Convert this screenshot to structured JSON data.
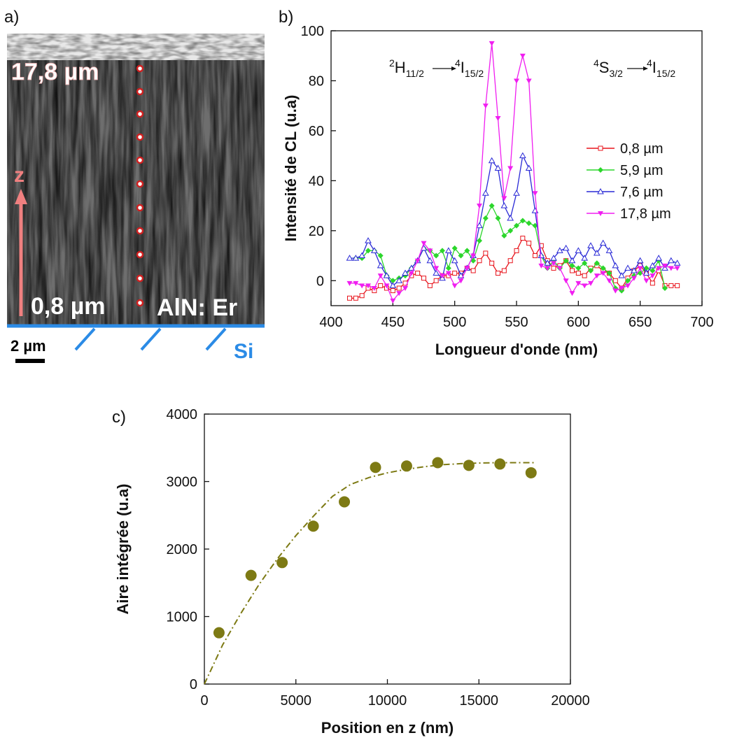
{
  "image_panel": {
    "label": "a)",
    "top_depth": "17,8 µm",
    "axis": "z",
    "bottom_depth": "0,8 µm",
    "material": "AlN: Er",
    "scale_bar": "2 µm",
    "substrate": "Si"
  },
  "chart_data": [
    {
      "type": "line",
      "panel_label": "b)",
      "x_label": "Longueur d'onde (nm)",
      "y_label": "Intensité de CL (u.a)",
      "xlim": [
        400,
        700
      ],
      "xticks": [
        400,
        450,
        500,
        550,
        600,
        650,
        700
      ],
      "ylim": [
        -10,
        100
      ],
      "yticks": [
        0,
        20,
        40,
        60,
        80,
        100
      ],
      "legend": "right",
      "annotations": [
        {
          "from_sup": "2",
          "from": "H",
          "from_sub": "11/2",
          "to_sup": "4",
          "to": "I",
          "to_sub": "15/2"
        },
        {
          "from_sup": "4",
          "from": "S",
          "from_sub": "3/2",
          "to_sup": "4",
          "to": "I",
          "to_sub": "15/2"
        }
      ],
      "x": [
        415,
        420,
        425,
        430,
        435,
        440,
        445,
        450,
        455,
        460,
        465,
        470,
        475,
        480,
        485,
        490,
        495,
        500,
        505,
        510,
        515,
        520,
        525,
        530,
        535,
        540,
        545,
        550,
        555,
        560,
        565,
        570,
        575,
        580,
        585,
        590,
        595,
        600,
        605,
        610,
        615,
        620,
        625,
        630,
        635,
        640,
        645,
        650,
        655,
        660,
        665,
        670,
        675,
        680
      ],
      "series": [
        {
          "name": "0,8 µm",
          "color": "#e8141c",
          "marker": "square-open",
          "values": [
            -7,
            -7,
            -6,
            -3,
            -4,
            -2,
            -3,
            -4,
            -3,
            -1,
            2,
            3,
            1,
            -2,
            0,
            2,
            2,
            3,
            3,
            5,
            4,
            8,
            11,
            7,
            3,
            4,
            8,
            12,
            17,
            15,
            10,
            14,
            8,
            5,
            6,
            8,
            4,
            3,
            2,
            5,
            6,
            4,
            3,
            0,
            -3,
            1,
            4,
            6,
            3,
            -1,
            4,
            -2,
            -2,
            -2
          ]
        },
        {
          "name": "5,9 µm",
          "color": "#2bd62b",
          "marker": "diamond-filled",
          "values": [
            null,
            9,
            9,
            12,
            12,
            10,
            2,
            0,
            1,
            2,
            5,
            8,
            13,
            12,
            10,
            12,
            5,
            13,
            10,
            12,
            8,
            16,
            25,
            30,
            25,
            18,
            20,
            22,
            24,
            23,
            22,
            10,
            5,
            8,
            5,
            8,
            6,
            5,
            7,
            4,
            7,
            5,
            3,
            -3,
            -4,
            0,
            2,
            3,
            5,
            4,
            8,
            -3,
            null,
            null
          ]
        },
        {
          "name": "7,6 µm",
          "color": "#2a2ad6",
          "marker": "triangle-open",
          "values": [
            9,
            9,
            10,
            16,
            12,
            6,
            2,
            -2,
            0,
            3,
            5,
            8,
            13,
            8,
            3,
            1,
            12,
            8,
            2,
            5,
            10,
            22,
            35,
            48,
            45,
            30,
            25,
            35,
            50,
            45,
            28,
            10,
            7,
            9,
            12,
            13,
            8,
            12,
            9,
            14,
            11,
            15,
            12,
            6,
            2,
            5,
            4,
            8,
            3,
            6,
            9,
            5,
            8,
            7
          ]
        },
        {
          "name": "17,8 µm",
          "color": "#f01ef0",
          "marker": "triangle-down-filled",
          "values": [
            -1,
            -1,
            -2,
            -2,
            -3,
            2,
            -2,
            -8,
            -5,
            -3,
            3,
            8,
            15,
            12,
            5,
            2,
            3,
            -2,
            0,
            5,
            10,
            30,
            70,
            95,
            65,
            33,
            45,
            80,
            90,
            80,
            35,
            6,
            5,
            7,
            5,
            0,
            -5,
            -1,
            -2,
            -1,
            2,
            3,
            0,
            -4,
            -3,
            -2,
            1,
            5,
            0,
            2,
            5,
            6,
            5,
            5
          ]
        }
      ]
    },
    {
      "type": "scatter",
      "panel_label": "c)",
      "x_label": "Position en z (nm)",
      "y_label": "Aire intégrée (u.a)",
      "xlim": [
        0,
        20000
      ],
      "xticks": [
        0,
        5000,
        10000,
        15000,
        20000
      ],
      "ylim": [
        0,
        4000
      ],
      "yticks": [
        0,
        1000,
        2000,
        3000,
        4000
      ],
      "color": "#7d7a14",
      "x": [
        800,
        2550,
        4250,
        5950,
        7650,
        9350,
        11050,
        12750,
        14450,
        16150,
        17850
      ],
      "values": [
        760,
        1610,
        1800,
        2340,
        2700,
        3210,
        3230,
        3280,
        3240,
        3260,
        3130
      ],
      "fit": {
        "color": "#7d7a14",
        "style": "dash-dot",
        "x": [
          0,
          1000,
          2000,
          3000,
          4000,
          5000,
          6000,
          7000,
          8000,
          9000,
          10000,
          11000,
          12000,
          13000,
          14000,
          15000,
          16000,
          17000,
          18000
        ],
        "values": [
          0,
          580,
          1050,
          1480,
          1860,
          2200,
          2500,
          2780,
          2960,
          3060,
          3130,
          3180,
          3220,
          3250,
          3265,
          3275,
          3280,
          3280,
          3280
        ]
      }
    }
  ]
}
